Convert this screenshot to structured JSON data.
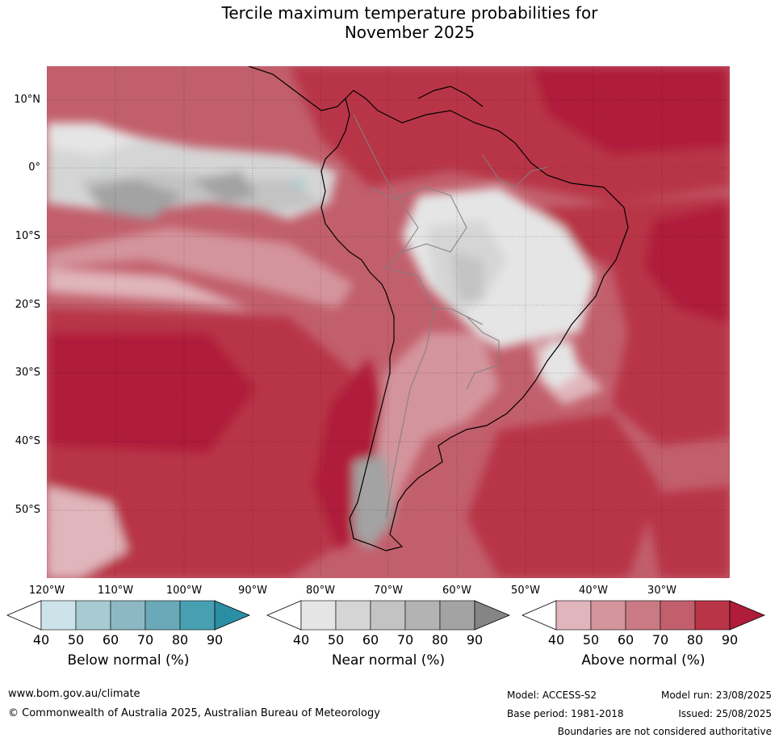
{
  "title_line1": "Tercile maximum temperature probabilities for",
  "title_line2": "November 2025",
  "map": {
    "lat_labels": [
      "10°N",
      "0°",
      "10°S",
      "20°S",
      "30°S",
      "40°S",
      "50°S"
    ],
    "lon_labels": [
      "120°W",
      "110°W",
      "100°W",
      "90°W",
      "80°W",
      "70°W",
      "60°W",
      "50°W",
      "40°W",
      "30°W"
    ]
  },
  "colorbars": [
    {
      "label": "Below normal (%)",
      "ticks": [
        "40",
        "50",
        "60",
        "70",
        "80",
        "90"
      ],
      "colors": [
        "#ffffff",
        "#cce3ea",
        "#a8cad2",
        "#8cb8c4",
        "#6aaab8",
        "#47a0b2",
        "#2b8ea4"
      ]
    },
    {
      "label": "Near normal (%)",
      "ticks": [
        "40",
        "50",
        "60",
        "70",
        "80",
        "90"
      ],
      "colors": [
        "#ffffff",
        "#e5e5e5",
        "#d5d5d5",
        "#c3c3c3",
        "#b3b3b3",
        "#a3a3a3",
        "#858585"
      ]
    },
    {
      "label": "Above normal (%)",
      "ticks": [
        "40",
        "50",
        "60",
        "70",
        "80",
        "90"
      ],
      "colors": [
        "#ffffff",
        "#e0b5bb",
        "#d4949c",
        "#c97a84",
        "#c25f6c",
        "#b83446",
        "#b01d3a"
      ]
    }
  ],
  "footer": {
    "website": "www.bom.gov.au/climate",
    "copyright": "© Commonwealth of Australia 2025, Australian Bureau of Meteorology",
    "model": "Model: ACCESS-S2",
    "model_run": "Model run: 23/08/2025",
    "base_period": "Base period: 1981-2018",
    "issued": "Issued: 25/08/2025",
    "disclaimer": "Boundaries are not considered authoritative"
  }
}
